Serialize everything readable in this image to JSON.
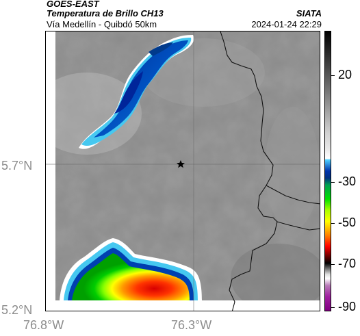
{
  "header": {
    "satellite": "GOES-EAST",
    "product": "Temperatura de Brillo CH13",
    "brand": "SIATA",
    "route": "Vía Medellín - Quibdó 50km",
    "datetime": "2024-01-24 22:29"
  },
  "map": {
    "lat_labels": [
      "5.7°N",
      "5.2°N"
    ],
    "lon_labels": [
      "76.8°W",
      "76.3°W"
    ],
    "marker": "star-icon",
    "colors": {
      "background_gray": "#8a8a8a",
      "cloud_blue": "#0033aa",
      "cloud_cyan": "#46c8f0",
      "cloud_green": "#00dd00",
      "cloud_yellow": "#ffff00",
      "cloud_red": "#ff1a00",
      "border_line": "#111111"
    }
  },
  "colorbar": {
    "labels": [
      "20",
      "-30",
      "-50",
      "-70",
      "-90"
    ]
  }
}
